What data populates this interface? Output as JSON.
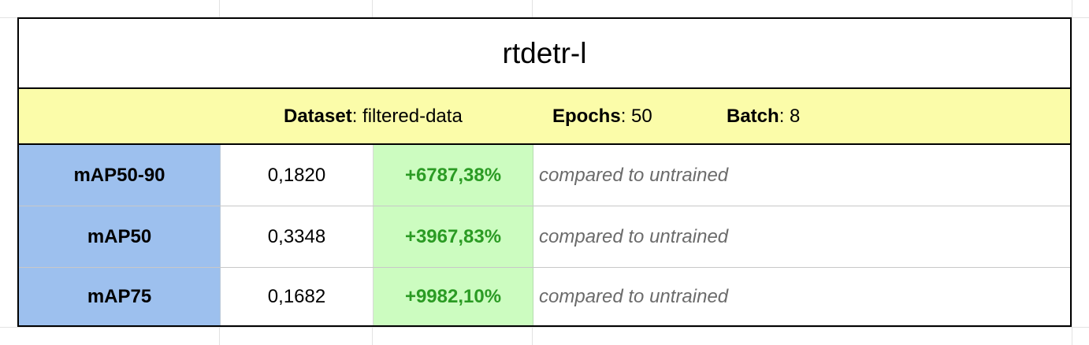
{
  "title": "rtdetr-l",
  "info": {
    "dataset_label": "Dataset",
    "dataset_value": ": filtered-data",
    "epochs_label": "Epochs",
    "epochs_value": ": 50",
    "batch_label": "Batch",
    "batch_value": ": 8"
  },
  "metrics": [
    {
      "name": "mAP50-90",
      "value": "0,1820",
      "delta": "+6787,38%",
      "note": "compared to untrained"
    },
    {
      "name": "mAP50",
      "value": "0,3348",
      "delta": "+3967,83%",
      "note": "compared to untrained"
    },
    {
      "name": "mAP75",
      "value": "0,1682",
      "delta": "+9982,10%",
      "note": "compared to untrained"
    }
  ],
  "colors": {
    "header_fill": "#fbfca9",
    "metric_name_fill": "#9dc0ee",
    "delta_fill": "#ccfcc0",
    "delta_text": "#2b9b24",
    "note_text": "#6b6b6b"
  }
}
